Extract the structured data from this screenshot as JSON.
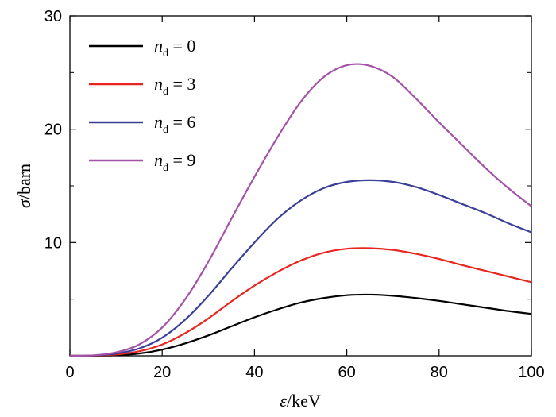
{
  "chart_data": {
    "type": "line",
    "title": "",
    "xlabel": "ε/keV",
    "ylabel": "σ/barn",
    "xlim": [
      0,
      100
    ],
    "ylim": [
      0,
      30
    ],
    "x_ticks": [
      0,
      20,
      40,
      60,
      80,
      100
    ],
    "y_ticks": [
      10,
      20,
      30
    ],
    "x_tick_labels": [
      "0",
      "20",
      "40",
      "60",
      "80",
      "100"
    ],
    "y_tick_labels": [
      "10",
      "20",
      "30"
    ],
    "grid": false,
    "legend_position": "top-left",
    "x": [
      0,
      5,
      10,
      15,
      20,
      25,
      30,
      35,
      40,
      45,
      50,
      55,
      60,
      65,
      70,
      75,
      80,
      85,
      90,
      95,
      100
    ],
    "series": [
      {
        "name": "n_d = 0",
        "legend_var": "n",
        "legend_sub": "d",
        "legend_rest": " = 0",
        "color": "#000000",
        "values": [
          0,
          0.01,
          0.05,
          0.2,
          0.55,
          1.1,
          1.8,
          2.6,
          3.4,
          4.1,
          4.7,
          5.1,
          5.35,
          5.4,
          5.3,
          5.1,
          4.85,
          4.55,
          4.25,
          3.95,
          3.7
        ]
      },
      {
        "name": "n_d = 3",
        "legend_var": "n",
        "legend_sub": "d",
        "legend_rest": " = 3",
        "color": "#e8261f",
        "values": [
          0,
          0.02,
          0.12,
          0.4,
          1.0,
          2.0,
          3.3,
          4.8,
          6.2,
          7.4,
          8.4,
          9.1,
          9.45,
          9.5,
          9.35,
          9.0,
          8.55,
          8.0,
          7.5,
          7.0,
          6.5
        ]
      },
      {
        "name": "n_d = 6",
        "legend_var": "n",
        "legend_sub": "d",
        "legend_rest": " = 6",
        "color": "#3b3f97",
        "values": [
          0,
          0.03,
          0.2,
          0.65,
          1.6,
          3.2,
          5.3,
          7.7,
          10.0,
          12.1,
          13.7,
          14.8,
          15.35,
          15.5,
          15.35,
          14.9,
          14.2,
          13.4,
          12.6,
          11.7,
          10.9
        ]
      },
      {
        "name": "n_d = 9",
        "legend_var": "n",
        "legend_sub": "d",
        "legend_rest": " = 9",
        "color": "#a452a8",
        "values": [
          0,
          0.04,
          0.3,
          1.0,
          2.5,
          5.0,
          8.3,
          12.1,
          15.8,
          19.3,
          22.4,
          24.6,
          25.65,
          25.6,
          24.6,
          22.7,
          20.6,
          18.6,
          16.6,
          14.8,
          13.2
        ]
      }
    ]
  }
}
